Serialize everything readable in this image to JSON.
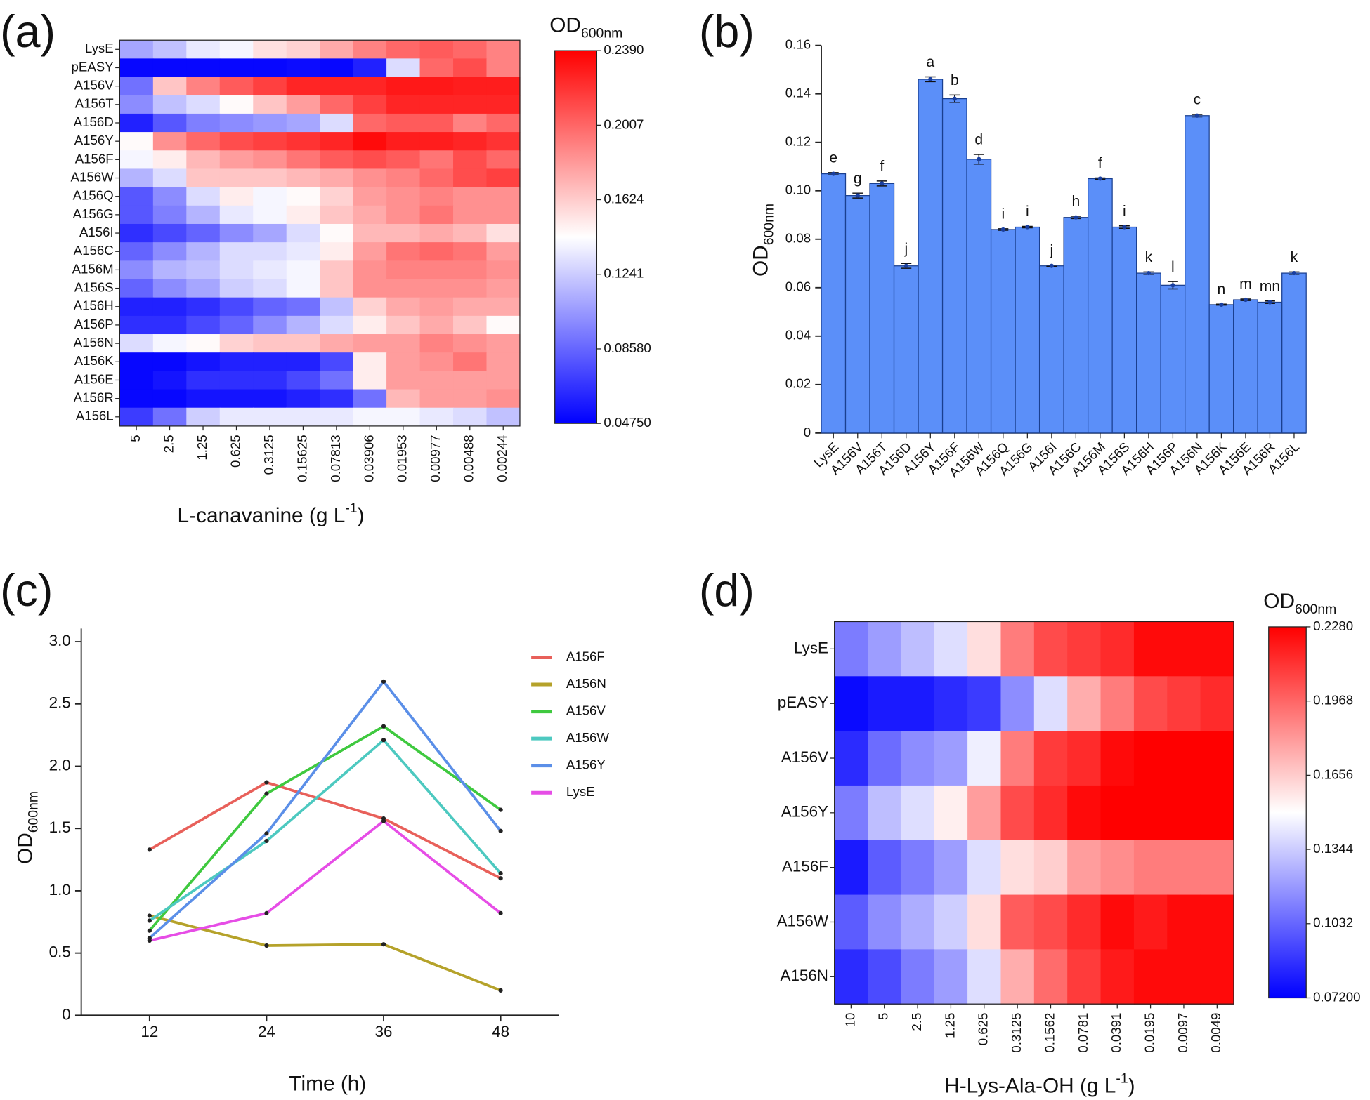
{
  "chart_data": [
    {
      "type": "heatmap",
      "panel_label": "(a)",
      "title": {
        "main": "OD",
        "sub": "600nm"
      },
      "xlabel": {
        "main": "L-canavanine (g L",
        "sup": "-1",
        "end": ")"
      },
      "categories": [
        "5",
        "2.5",
        "1.25",
        "0.625",
        "0.3125",
        "0.15625",
        "0.07813",
        "0.03906",
        "0.01953",
        "0.00977",
        "0.00488",
        "0.00244"
      ],
      "rows": [
        "LysE",
        "pEASY",
        "A156V",
        "A156T",
        "A156D",
        "A156Y",
        "A156F",
        "A156W",
        "A156Q",
        "A156G",
        "A156I",
        "A156C",
        "A156M",
        "A156S",
        "A156H",
        "A156P",
        "A156N",
        "A156K",
        "A156E",
        "A156R",
        "A156L"
      ],
      "values": [
        [
          0.11,
          0.12,
          0.135,
          0.14,
          0.155,
          0.16,
          0.175,
          0.19,
          0.2,
          0.205,
          0.2,
          0.19
        ],
        [
          0.05,
          0.05,
          0.05,
          0.05,
          0.05,
          0.052,
          0.05,
          0.06,
          0.13,
          0.2,
          0.21,
          0.19
        ],
        [
          0.09,
          0.165,
          0.19,
          0.205,
          0.215,
          0.225,
          0.225,
          0.225,
          0.23,
          0.23,
          0.228,
          0.228
        ],
        [
          0.1,
          0.12,
          0.13,
          0.145,
          0.165,
          0.18,
          0.2,
          0.215,
          0.225,
          0.225,
          0.225,
          0.225
        ],
        [
          0.06,
          0.08,
          0.095,
          0.1,
          0.105,
          0.11,
          0.13,
          0.2,
          0.205,
          0.205,
          0.19,
          0.2
        ],
        [
          0.145,
          0.185,
          0.2,
          0.21,
          0.215,
          0.22,
          0.225,
          0.235,
          0.228,
          0.228,
          0.225,
          0.22
        ],
        [
          0.14,
          0.15,
          0.17,
          0.18,
          0.185,
          0.195,
          0.205,
          0.21,
          0.205,
          0.195,
          0.21,
          0.2
        ],
        [
          0.115,
          0.13,
          0.165,
          0.165,
          0.165,
          0.17,
          0.175,
          0.185,
          0.19,
          0.2,
          0.21,
          0.215
        ],
        [
          0.08,
          0.1,
          0.13,
          0.15,
          0.14,
          0.145,
          0.16,
          0.18,
          0.185,
          0.19,
          0.185,
          0.185
        ],
        [
          0.08,
          0.095,
          0.115,
          0.135,
          0.14,
          0.15,
          0.165,
          0.175,
          0.185,
          0.195,
          0.185,
          0.185
        ],
        [
          0.065,
          0.075,
          0.085,
          0.1,
          0.11,
          0.13,
          0.145,
          0.17,
          0.17,
          0.175,
          0.17,
          0.155
        ],
        [
          0.085,
          0.1,
          0.115,
          0.13,
          0.13,
          0.135,
          0.15,
          0.18,
          0.195,
          0.2,
          0.195,
          0.18
        ],
        [
          0.1,
          0.115,
          0.12,
          0.13,
          0.135,
          0.14,
          0.165,
          0.185,
          0.19,
          0.19,
          0.19,
          0.185
        ],
        [
          0.085,
          0.1,
          0.11,
          0.125,
          0.13,
          0.14,
          0.165,
          0.185,
          0.185,
          0.185,
          0.185,
          0.18
        ],
        [
          0.06,
          0.06,
          0.065,
          0.075,
          0.085,
          0.09,
          0.12,
          0.16,
          0.175,
          0.18,
          0.175,
          0.175
        ],
        [
          0.065,
          0.065,
          0.075,
          0.085,
          0.1,
          0.115,
          0.13,
          0.15,
          0.165,
          0.175,
          0.165,
          0.145
        ],
        [
          0.13,
          0.14,
          0.145,
          0.16,
          0.165,
          0.165,
          0.175,
          0.18,
          0.18,
          0.19,
          0.185,
          0.18
        ],
        [
          0.05,
          0.05,
          0.055,
          0.06,
          0.06,
          0.06,
          0.075,
          0.15,
          0.18,
          0.185,
          0.195,
          0.18
        ],
        [
          0.05,
          0.055,
          0.065,
          0.065,
          0.065,
          0.075,
          0.09,
          0.15,
          0.18,
          0.18,
          0.18,
          0.18
        ],
        [
          0.05,
          0.05,
          0.055,
          0.055,
          0.055,
          0.06,
          0.065,
          0.09,
          0.17,
          0.18,
          0.18,
          0.185
        ],
        [
          0.07,
          0.09,
          0.125,
          0.135,
          0.135,
          0.135,
          0.135,
          0.14,
          0.14,
          0.135,
          0.13,
          0.12
        ]
      ],
      "clim": [
        0.0475,
        0.239
      ],
      "cticks": [
        {
          "value": 0.0475,
          "label": "0.04750"
        },
        {
          "value": 0.0858,
          "label": "0.08580"
        },
        0.1241,
        0.1624,
        0.2007,
        {
          "value": 0.239,
          "label": "0.2390"
        }
      ],
      "colors": [
        "#0000ff",
        "#ffffff",
        "#ff0000"
      ]
    },
    {
      "type": "bar",
      "panel_label": "(b)",
      "ylabel": {
        "main": "OD",
        "sub": "600nm"
      },
      "categories": [
        "LysE",
        "A156V",
        "A156T",
        "A156D",
        "A156Y",
        "A156F",
        "A156W",
        "A156Q",
        "A156G",
        "A156I",
        "A156C",
        "A156M",
        "A156S",
        "A156H",
        "A156P",
        "A156N",
        "A156K",
        "A156E",
        "A156R",
        "A156L"
      ],
      "values": [
        0.107,
        0.098,
        0.103,
        0.069,
        0.146,
        0.138,
        0.113,
        0.084,
        0.085,
        0.069,
        0.089,
        0.105,
        0.085,
        0.066,
        0.061,
        0.131,
        0.053,
        0.055,
        0.054,
        0.066
      ],
      "errors": [
        0.0005,
        0.001,
        0.001,
        0.001,
        0.001,
        0.0015,
        0.002,
        0.0003,
        0.0003,
        0.0003,
        0.0005,
        0.0003,
        0.0005,
        0.0005,
        0.0015,
        0.0005,
        0.0002,
        0.0003,
        0.0005,
        0.0005
      ],
      "annotations": [
        "e",
        "g",
        "f",
        "j",
        "a",
        "b",
        "d",
        "i",
        "i",
        "j",
        "h",
        "f",
        "i",
        "k",
        "l",
        "c",
        "n",
        "m",
        "mn",
        "k"
      ],
      "color": "#5b8ff9",
      "ylim": [
        0,
        0.16
      ],
      "yticks": [
        0,
        0.02,
        0.04,
        0.06,
        0.08,
        {
          "value": 0.1,
          "label": "0.10"
        },
        0.12,
        0.14,
        0.16
      ]
    },
    {
      "type": "line",
      "panel_label": "(c)",
      "xlabel": "Time (h)",
      "ylabel": {
        "main": "OD",
        "sub": "600nm"
      },
      "x": [
        12,
        24,
        36,
        48
      ],
      "xlim": [
        5,
        54
      ],
      "xticks": [
        12,
        24,
        36,
        48
      ],
      "ylim": [
        0,
        3
      ],
      "yticks": [
        0,
        0.5,
        {
          "value": 1,
          "label": "1.0"
        },
        1.5,
        {
          "value": 2,
          "label": "2.0"
        },
        2.5,
        {
          "value": 3,
          "label": "3.0"
        }
      ],
      "series": [
        {
          "name": "A156F",
          "color": "#e8605a",
          "values": [
            1.33,
            1.87,
            1.58,
            1.1
          ]
        },
        {
          "name": "A156N",
          "color": "#b5a22a",
          "values": [
            0.8,
            0.56,
            0.57,
            0.2
          ]
        },
        {
          "name": "A156V",
          "color": "#3fc93f",
          "values": [
            0.68,
            1.78,
            2.32,
            1.65
          ]
        },
        {
          "name": "A156W",
          "color": "#4dc9c0",
          "values": [
            0.76,
            1.4,
            2.21,
            1.14
          ]
        },
        {
          "name": "A156Y",
          "color": "#5b8fe8",
          "values": [
            0.62,
            1.46,
            2.68,
            1.48
          ]
        },
        {
          "name": "LysE",
          "color": "#e64de6",
          "values": [
            0.6,
            0.82,
            1.56,
            0.82
          ]
        }
      ]
    },
    {
      "type": "heatmap",
      "panel_label": "(d)",
      "title": {
        "main": "OD",
        "sub": "600nm"
      },
      "xlabel": {
        "main": "H-Lys-Ala-OH (g L",
        "sup": "-1",
        "end": ")"
      },
      "categories": [
        "10",
        "5",
        "2.5",
        "1.25",
        "0.625",
        "0.3125",
        "0.1562",
        "0.0781",
        "0.0391",
        "0.0195",
        "0.0097",
        "0.0049"
      ],
      "rows": [
        "LysE",
        "pEASY",
        "A156V",
        "A156Y",
        "A156F",
        "A156W",
        "A156N"
      ],
      "values": [
        [
          0.11,
          0.12,
          0.13,
          0.14,
          0.16,
          0.19,
          0.205,
          0.21,
          0.215,
          0.225,
          0.225,
          0.225
        ],
        [
          0.075,
          0.08,
          0.08,
          0.085,
          0.09,
          0.115,
          0.14,
          0.175,
          0.19,
          0.205,
          0.21,
          0.215
        ],
        [
          0.085,
          0.105,
          0.115,
          0.12,
          0.145,
          0.19,
          0.21,
          0.215,
          0.225,
          0.228,
          0.228,
          0.228
        ],
        [
          0.11,
          0.13,
          0.14,
          0.155,
          0.18,
          0.205,
          0.215,
          0.225,
          0.228,
          0.228,
          0.228,
          0.228
        ],
        [
          0.08,
          0.1,
          0.11,
          0.12,
          0.14,
          0.16,
          0.165,
          0.18,
          0.185,
          0.19,
          0.19,
          0.19
        ],
        [
          0.1,
          0.115,
          0.125,
          0.135,
          0.16,
          0.2,
          0.205,
          0.215,
          0.225,
          0.22,
          0.225,
          0.225
        ],
        [
          0.085,
          0.095,
          0.11,
          0.12,
          0.14,
          0.175,
          0.195,
          0.21,
          0.22,
          0.225,
          0.225,
          0.225
        ]
      ],
      "clim": [
        0.072,
        0.228
      ],
      "cticks": [
        {
          "value": 0.072,
          "label": "0.07200"
        },
        0.1032,
        0.1344,
        0.1656,
        0.1968,
        {
          "value": 0.228,
          "label": "0.2280"
        }
      ],
      "colors": [
        "#0000ff",
        "#ffffff",
        "#ff0000"
      ]
    }
  ]
}
